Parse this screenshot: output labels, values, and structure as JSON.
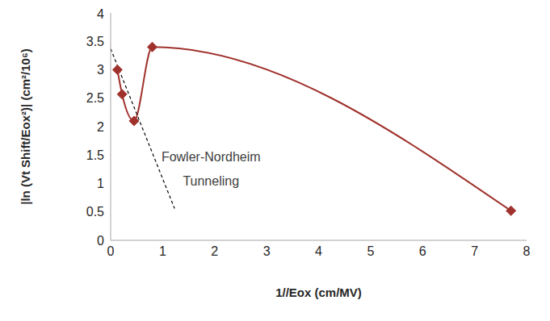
{
  "chart_data": {
    "type": "line",
    "x_label": "1//Eox (cm/MV)",
    "y_label": "|ln (Vt Shift/Eox²)| (cm²/10⁶)",
    "xlim": [
      0,
      8
    ],
    "ylim": [
      0,
      4
    ],
    "xticks": [
      0,
      1,
      2,
      3,
      4,
      5,
      6,
      7,
      8
    ],
    "yticks": [
      0,
      0.5,
      1,
      1.5,
      2,
      2.5,
      3,
      3.5,
      4
    ],
    "grid": false,
    "annotations": [
      "Fowler-Nordheim Tunneling"
    ],
    "series": [
      {
        "color": "#a0322d",
        "marker": "diamond",
        "line_style": "solid",
        "x": [
          0.13,
          0.22,
          0.45,
          0.8,
          7.7
        ],
        "values": [
          3.0,
          2.57,
          2.1,
          3.4,
          0.52
        ]
      },
      {
        "color": "#000000",
        "marker": "none",
        "line_style": "dashed",
        "x": [
          0,
          1.23
        ],
        "values": [
          3.37,
          0.56
        ]
      }
    ]
  }
}
